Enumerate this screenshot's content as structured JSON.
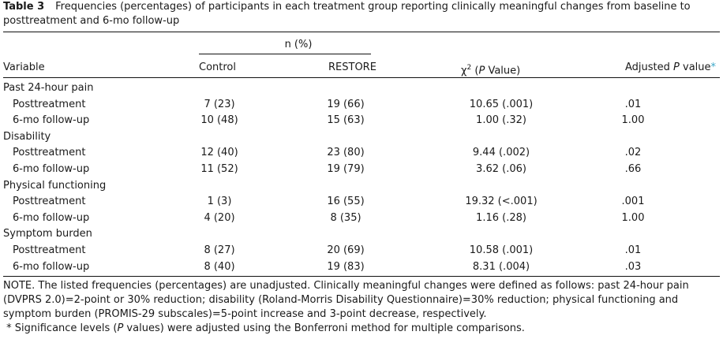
{
  "caption": {
    "label": "Table 3",
    "text": "Frequencies (percentages) of participants in each treatment group reporting clinically meaningful changes from baseline to posttreatment and 6-mo follow-up"
  },
  "header": {
    "group": "n (%)",
    "variable": "Variable",
    "control": "Control",
    "restore": "RESTORE",
    "chi_prefix": "χ",
    "chi_sup": "2",
    "chi_open": " (",
    "chi_p": "P",
    "chi_close": " Value)",
    "adj_prefix": "Adjusted ",
    "adj_p": "P",
    "adj_suffix": " value",
    "adj_mark": "*"
  },
  "groups": [
    {
      "name": "Past 24-hour pain",
      "rows": [
        {
          "label": "Posttreatment",
          "control": "7 (23)",
          "restore": "19 (66)",
          "chi": "10.65 (.001)",
          "adj": ".01"
        },
        {
          "label": "6-mo follow-up",
          "control": "10 (48)",
          "restore": "15 (63)",
          "chi": "1.00 (.32)",
          "adj": "1.00"
        }
      ]
    },
    {
      "name": "Disability",
      "rows": [
        {
          "label": "Posttreatment",
          "control": "12 (40)",
          "restore": "23 (80)",
          "chi": "9.44 (.002)",
          "adj": ".02"
        },
        {
          "label": "6-mo follow-up",
          "control": "11 (52)",
          "restore": "19 (79)",
          "chi": "3.62 (.06)",
          "adj": ".66"
        }
      ]
    },
    {
      "name": "Physical functioning",
      "rows": [
        {
          "label": "Posttreatment",
          "control": "1 (3)",
          "restore": "16 (55)",
          "chi": "19.32 (<.001)",
          "adj": ".001"
        },
        {
          "label": "6-mo follow-up",
          "control": "4 (20)",
          "restore": "8 (35)",
          "chi": "1.16 (.28)",
          "adj": "1.00"
        }
      ]
    },
    {
      "name": "Symptom burden",
      "rows": [
        {
          "label": "Posttreatment",
          "control": "8 (27)",
          "restore": "20 (69)",
          "chi": "10.58 (.001)",
          "adj": ".01"
        },
        {
          "label": "6-mo follow-up",
          "control": "8 (40)",
          "restore": "19 (83)",
          "chi": "8.31 (.004)",
          "adj": ".03"
        }
      ]
    }
  ],
  "footer": {
    "note": "NOTE. The listed frequencies (percentages) are unadjusted. Clinically meaningful changes were defined as follows: past 24-hour pain (DVPRS 2.0)=2-point or 30% reduction; disability (Roland-Morris Disability Questionnaire)=30% reduction; physical functioning and symptom burden (PROMIS-29 subscales)=5-point increase and 3-point decrease, respectively.",
    "star": "*",
    "sig_a": " Significance levels (",
    "sig_p": "P",
    "sig_b": " values) were adjusted using the Bonferroni method for multiple comparisons."
  }
}
